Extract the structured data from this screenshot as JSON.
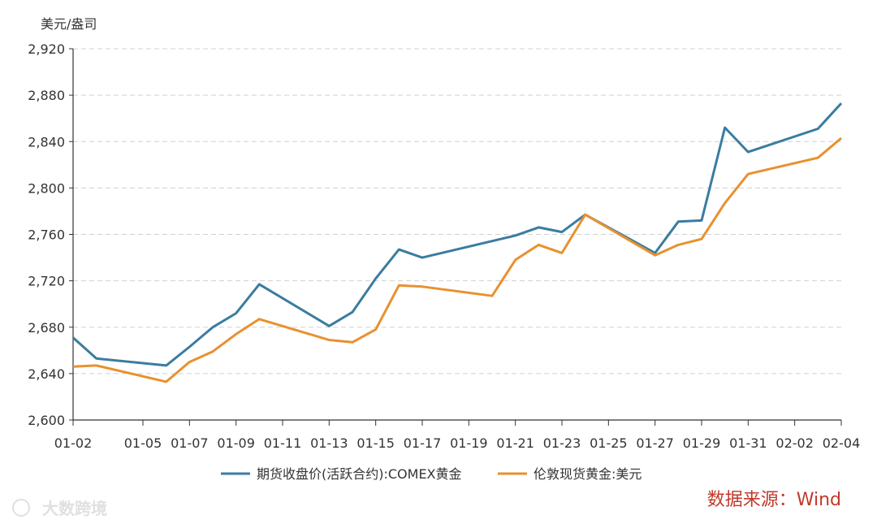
{
  "chart_data": {
    "type": "line",
    "y_unit_label": "美元/盎司",
    "ylim": [
      2600,
      2920
    ],
    "y_ticks": [
      "2,600",
      "2,640",
      "2,680",
      "2,720",
      "2,760",
      "2,800",
      "2,840",
      "2,880",
      "2,920"
    ],
    "y_tick_values": [
      2600,
      2640,
      2680,
      2720,
      2760,
      2800,
      2840,
      2880,
      2920
    ],
    "x_tick_labels": [
      "01-02",
      "01-05",
      "01-07",
      "01-09",
      "01-11",
      "01-13",
      "01-15",
      "01-17",
      "01-19",
      "01-21",
      "01-23",
      "01-25",
      "01-27",
      "01-29",
      "01-31",
      "02-02",
      "02-04"
    ],
    "x_tick_dates": [
      "2025-01-02",
      "2025-01-05",
      "2025-01-07",
      "2025-01-09",
      "2025-01-11",
      "2025-01-13",
      "2025-01-15",
      "2025-01-17",
      "2025-01-19",
      "2025-01-21",
      "2025-01-23",
      "2025-01-25",
      "2025-01-27",
      "2025-01-29",
      "2025-01-31",
      "2025-02-02",
      "2025-02-04"
    ],
    "series": [
      {
        "name": "期货收盘价(活跃合约):COMEX黄金",
        "color": "#3a7ca0",
        "points": [
          [
            "2025-01-02",
            2671
          ],
          [
            "2025-01-03",
            2653
          ],
          [
            "2025-01-06",
            2647
          ],
          [
            "2025-01-07",
            2663
          ],
          [
            "2025-01-08",
            2680
          ],
          [
            "2025-01-09",
            2692
          ],
          [
            "2025-01-10",
            2717
          ],
          [
            "2025-01-13",
            2681
          ],
          [
            "2025-01-14",
            2693
          ],
          [
            "2025-01-15",
            2722
          ],
          [
            "2025-01-16",
            2747
          ],
          [
            "2025-01-17",
            2740
          ],
          [
            "2025-01-21",
            2759
          ],
          [
            "2025-01-22",
            2766
          ],
          [
            "2025-01-23",
            2762
          ],
          [
            "2025-01-24",
            2777
          ],
          [
            "2025-01-27",
            2744
          ],
          [
            "2025-01-28",
            2771
          ],
          [
            "2025-01-29",
            2772
          ],
          [
            "2025-01-30",
            2852
          ],
          [
            "2025-01-31",
            2831
          ],
          [
            "2025-02-03",
            2851
          ],
          [
            "2025-02-04",
            2873
          ]
        ]
      },
      {
        "name": "伦敦现货黄金:美元",
        "color": "#e8912f",
        "points": [
          [
            "2025-01-02",
            2646
          ],
          [
            "2025-01-03",
            2647
          ],
          [
            "2025-01-06",
            2633
          ],
          [
            "2025-01-07",
            2650
          ],
          [
            "2025-01-08",
            2659
          ],
          [
            "2025-01-09",
            2674
          ],
          [
            "2025-01-10",
            2687
          ],
          [
            "2025-01-13",
            2669
          ],
          [
            "2025-01-14",
            2667
          ],
          [
            "2025-01-15",
            2678
          ],
          [
            "2025-01-16",
            2716
          ],
          [
            "2025-01-17",
            2715
          ],
          [
            "2025-01-20",
            2707
          ],
          [
            "2025-01-21",
            2738
          ],
          [
            "2025-01-22",
            2751
          ],
          [
            "2025-01-23",
            2744
          ],
          [
            "2025-01-24",
            2777
          ],
          [
            "2025-01-27",
            2742
          ],
          [
            "2025-01-28",
            2751
          ],
          [
            "2025-01-29",
            2756
          ],
          [
            "2025-01-30",
            2787
          ],
          [
            "2025-01-31",
            2812
          ],
          [
            "2025-02-03",
            2826
          ],
          [
            "2025-02-04",
            2843
          ]
        ]
      }
    ],
    "grid": "horizontal-dashed",
    "legend_position": "bottom"
  },
  "source": "数据来源：Wind",
  "watermark": "大数跨境"
}
